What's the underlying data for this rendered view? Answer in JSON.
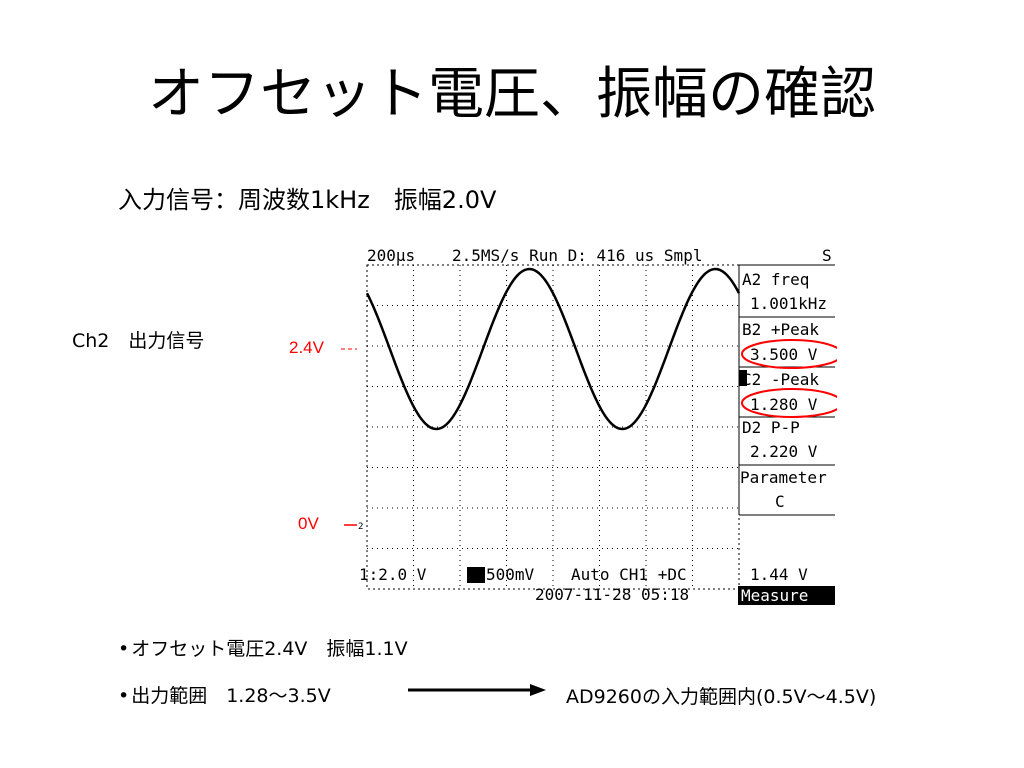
{
  "slide": {
    "title": "オフセット電圧、振幅の確認",
    "subtitle": "入力信号：周波数1kHz　振幅2.0V",
    "ch2_label": "Ch2　出力信号",
    "level_high": "2.4V",
    "level_zero": "0V",
    "marker_color": "#ff0000"
  },
  "scope": {
    "header_timebase": "200μs",
    "header_status": "2.5MS/s Run D: 416 us Smpl",
    "header_flag": "S",
    "measurements": [
      {
        "label": "A2 freq",
        "value": "1.001kHz"
      },
      {
        "label": "B2 +Peak",
        "value": "3.500 V"
      },
      {
        "label": "C2 -Peak",
        "value": "1.280 V"
      },
      {
        "label": "D2 P-P",
        "value": "2.220 V"
      }
    ],
    "parameter_label": "Parameter",
    "parameter_value": "C",
    "footer_scale": "1:2.0 V",
    "footer_ch2": "500mV",
    "footer_mode": "Auto CH1 +DC",
    "footer_level": "1.44 V",
    "footer_datetime": "2007-11-28 05:18",
    "footer_menu": "Measure",
    "ground_marker": "2",
    "circled_values": [
      "3.500 V",
      "1.280 V"
    ],
    "waveform_color": "#000000"
  },
  "bullets": {
    "item1": "オフセット電圧2.4V　振幅1.1V",
    "item2": "出力範囲　1.28～3.5V",
    "result": "AD9260の入力範囲内(0.5V～4.5V)",
    "bullet_char": "•"
  }
}
